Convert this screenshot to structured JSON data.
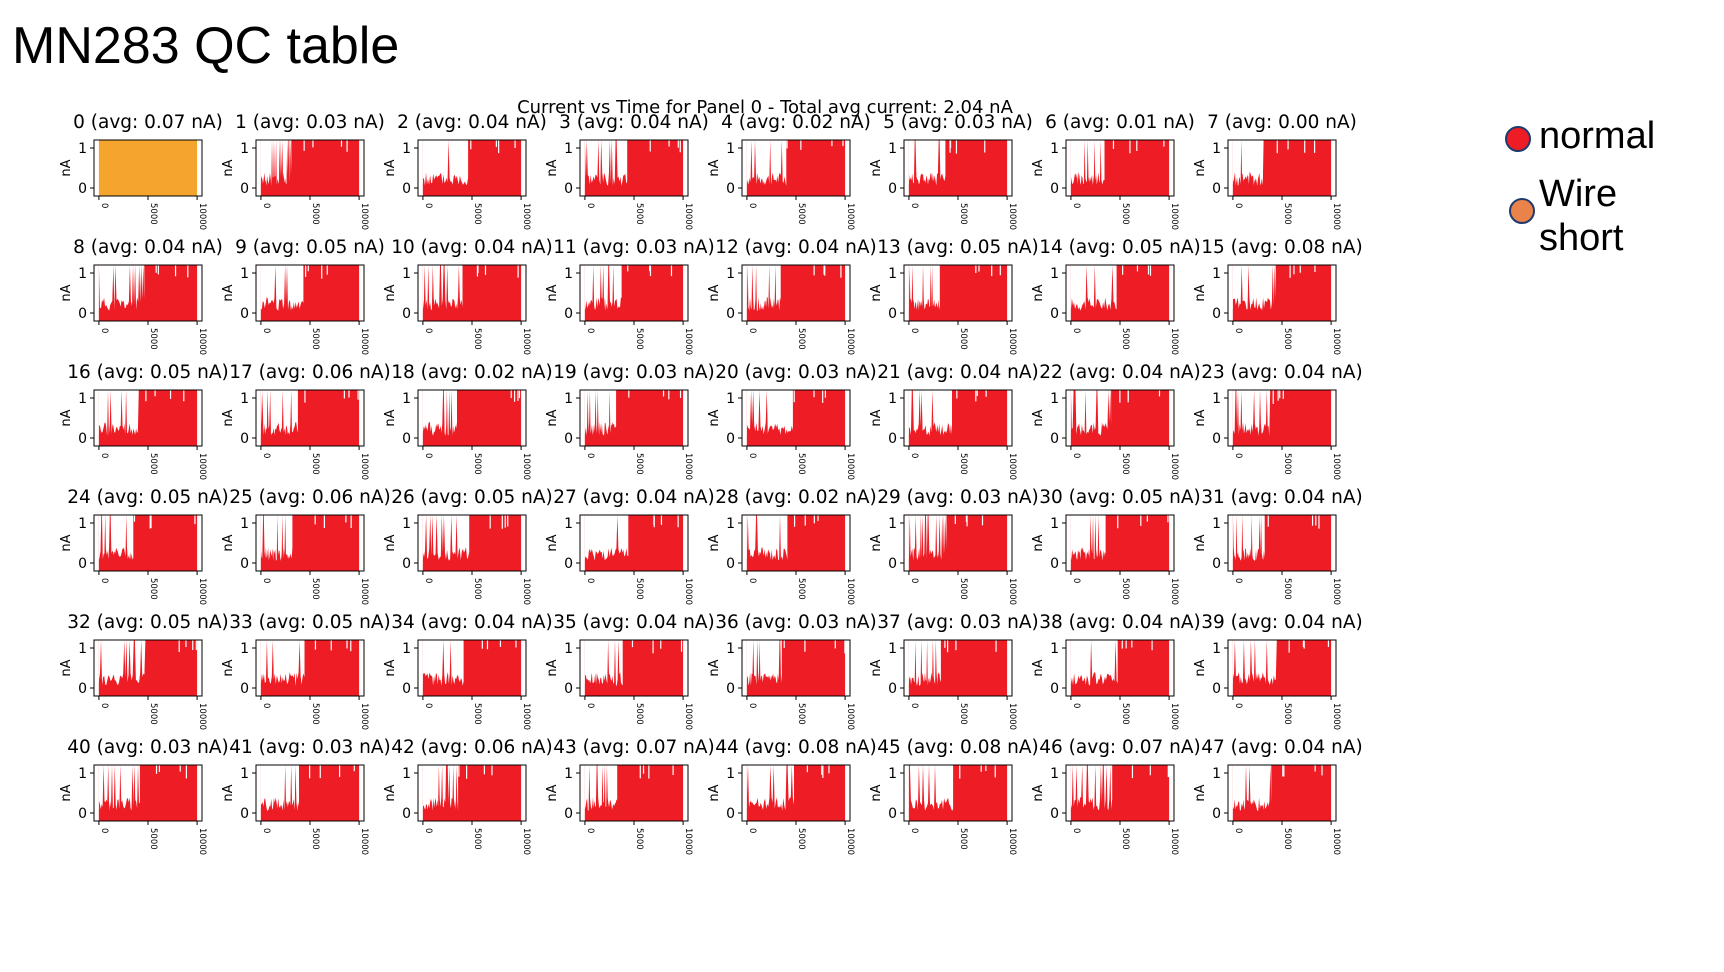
{
  "slide": {
    "title": "MN283 QC table"
  },
  "legend": [
    {
      "label": "normal",
      "color": "#ee1c25"
    },
    {
      "label": "Wire short",
      "color": "#e9834a"
    }
  ],
  "chart_data": {
    "type": "area",
    "title": "Current vs Time for Panel 0 - Total avg current: 2.04 nA",
    "ylabel": "nA",
    "ylim": [
      -0.2,
      1.2
    ],
    "xlim": [
      -500,
      10500
    ],
    "yticks": [
      "0",
      "1"
    ],
    "xticks": [
      "0",
      "5000",
      "10000"
    ],
    "colors": {
      "normal": "#ee1c25",
      "wire_short": "#f5a52e"
    },
    "channels": [
      {
        "id": 0,
        "title": "0 (avg: 0.07 nA)",
        "status": "wire_short"
      },
      {
        "id": 1,
        "title": "1 (avg: 0.03 nA)",
        "status": "normal"
      },
      {
        "id": 2,
        "title": "2 (avg: 0.04 nA)",
        "status": "normal"
      },
      {
        "id": 3,
        "title": "3 (avg: 0.04 nA)",
        "status": "normal"
      },
      {
        "id": 4,
        "title": "4 (avg: 0.02 nA)",
        "status": "normal"
      },
      {
        "id": 5,
        "title": "5 (avg: 0.03 nA)",
        "status": "normal"
      },
      {
        "id": 6,
        "title": "6 (avg: 0.01 nA)",
        "status": "normal"
      },
      {
        "id": 7,
        "title": "7 (avg: 0.00 nA)",
        "status": "normal"
      },
      {
        "id": 8,
        "title": "8 (avg: 0.04 nA)",
        "status": "normal"
      },
      {
        "id": 9,
        "title": "9 (avg: 0.05 nA)",
        "status": "normal"
      },
      {
        "id": 10,
        "title": "10 (avg: 0.04 nA)",
        "status": "normal"
      },
      {
        "id": 11,
        "title": "11 (avg: 0.03 nA)",
        "status": "normal"
      },
      {
        "id": 12,
        "title": "12 (avg: 0.04 nA)",
        "status": "normal"
      },
      {
        "id": 13,
        "title": "13 (avg: 0.05 nA)",
        "status": "normal"
      },
      {
        "id": 14,
        "title": "14 (avg: 0.05 nA)",
        "status": "normal"
      },
      {
        "id": 15,
        "title": "15 (avg: 0.08 nA)",
        "status": "normal"
      },
      {
        "id": 16,
        "title": "16 (avg: 0.05 nA)",
        "status": "normal"
      },
      {
        "id": 17,
        "title": "17 (avg: 0.06 nA)",
        "status": "normal"
      },
      {
        "id": 18,
        "title": "18 (avg: 0.02 nA)",
        "status": "normal"
      },
      {
        "id": 19,
        "title": "19 (avg: 0.03 nA)",
        "status": "normal"
      },
      {
        "id": 20,
        "title": "20 (avg: 0.03 nA)",
        "status": "normal"
      },
      {
        "id": 21,
        "title": "21 (avg: 0.04 nA)",
        "status": "normal"
      },
      {
        "id": 22,
        "title": "22 (avg: 0.04 nA)",
        "status": "normal"
      },
      {
        "id": 23,
        "title": "23 (avg: 0.04 nA)",
        "status": "normal"
      },
      {
        "id": 24,
        "title": "24 (avg: 0.05 nA)",
        "status": "normal"
      },
      {
        "id": 25,
        "title": "25 (avg: 0.06 nA)",
        "status": "normal"
      },
      {
        "id": 26,
        "title": "26 (avg: 0.05 nA)",
        "status": "normal"
      },
      {
        "id": 27,
        "title": "27 (avg: 0.04 nA)",
        "status": "normal"
      },
      {
        "id": 28,
        "title": "28 (avg: 0.02 nA)",
        "status": "normal"
      },
      {
        "id": 29,
        "title": "29 (avg: 0.03 nA)",
        "status": "normal"
      },
      {
        "id": 30,
        "title": "30 (avg: 0.05 nA)",
        "status": "normal"
      },
      {
        "id": 31,
        "title": "31 (avg: 0.04 nA)",
        "status": "normal"
      },
      {
        "id": 32,
        "title": "32 (avg: 0.05 nA)",
        "status": "normal"
      },
      {
        "id": 33,
        "title": "33 (avg: 0.05 nA)",
        "status": "normal"
      },
      {
        "id": 34,
        "title": "34 (avg: 0.04 nA)",
        "status": "normal"
      },
      {
        "id": 35,
        "title": "35 (avg: 0.04 nA)",
        "status": "normal"
      },
      {
        "id": 36,
        "title": "36 (avg: 0.03 nA)",
        "status": "normal"
      },
      {
        "id": 37,
        "title": "37 (avg: 0.03 nA)",
        "status": "normal"
      },
      {
        "id": 38,
        "title": "38 (avg: 0.04 nA)",
        "status": "normal"
      },
      {
        "id": 39,
        "title": "39 (avg: 0.04 nA)",
        "status": "normal"
      },
      {
        "id": 40,
        "title": "40 (avg: 0.03 nA)",
        "status": "normal"
      },
      {
        "id": 41,
        "title": "41 (avg: 0.03 nA)",
        "status": "normal"
      },
      {
        "id": 42,
        "title": "42 (avg: 0.06 nA)",
        "status": "normal"
      },
      {
        "id": 43,
        "title": "43 (avg: 0.07 nA)",
        "status": "normal"
      },
      {
        "id": 44,
        "title": "44 (avg: 0.08 nA)",
        "status": "normal"
      },
      {
        "id": 45,
        "title": "45 (avg: 0.08 nA)",
        "status": "normal"
      },
      {
        "id": 46,
        "title": "46 (avg: 0.07 nA)",
        "status": "normal"
      },
      {
        "id": 47,
        "title": "47 (avg: 0.04 nA)",
        "status": "normal"
      }
    ]
  }
}
